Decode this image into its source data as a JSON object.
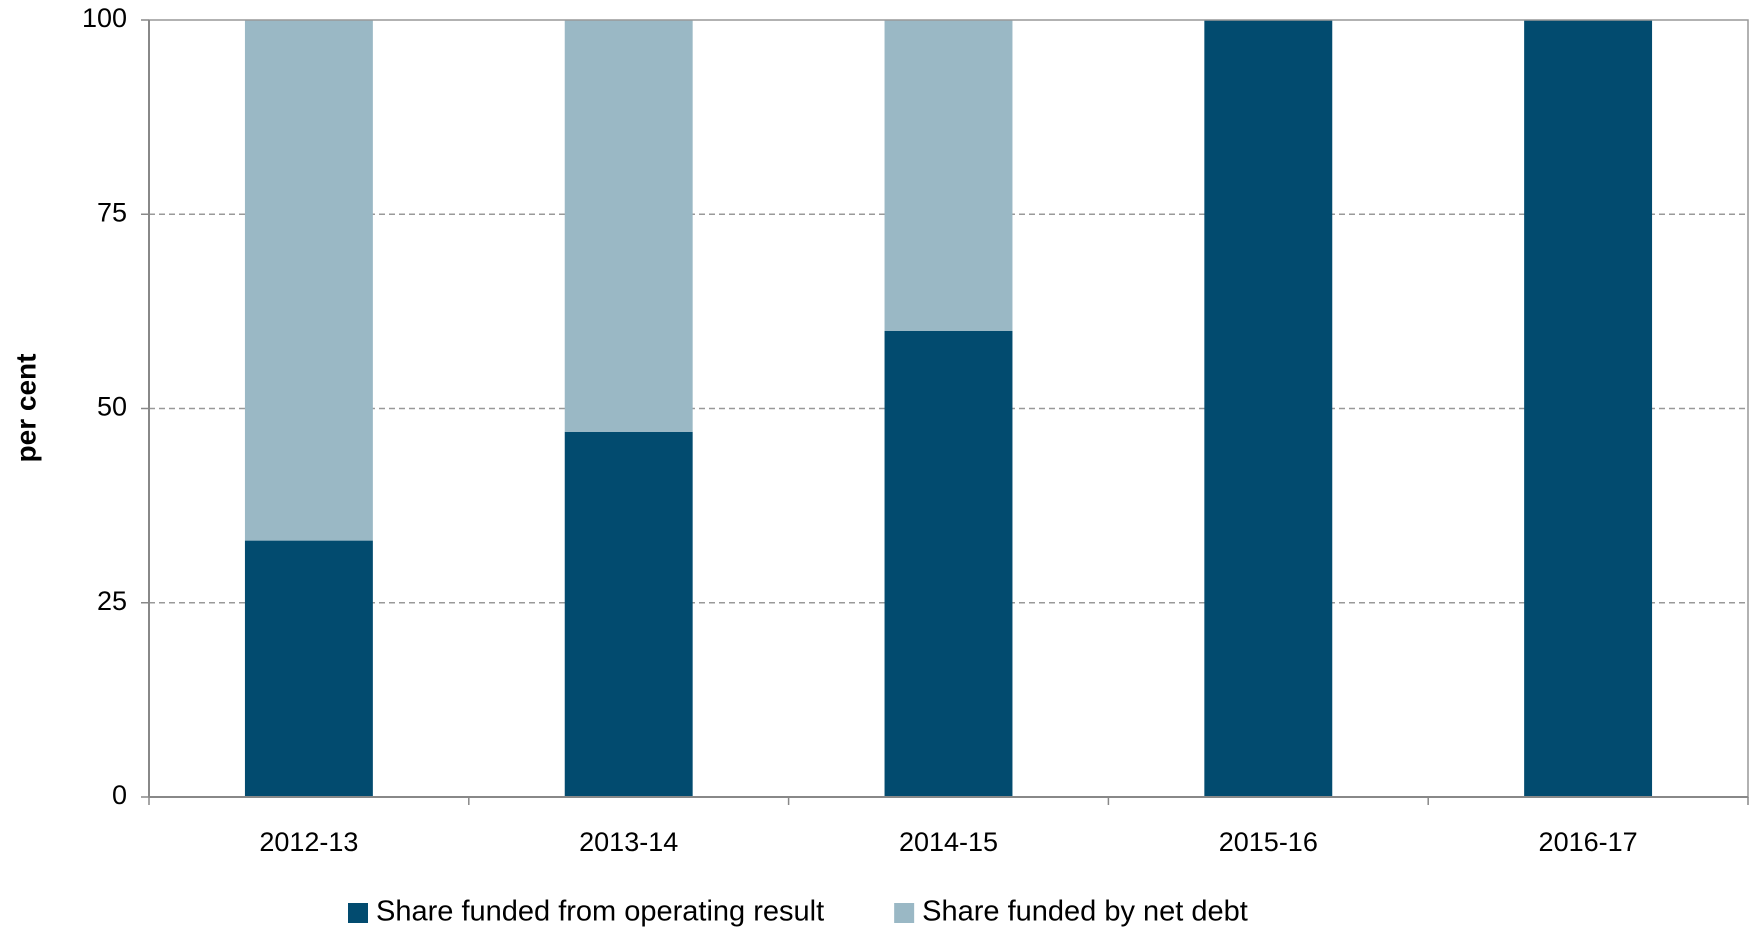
{
  "chart_data": {
    "type": "stacked_bar",
    "y_label": "per cent",
    "categories": [
      "2012-13",
      "2013-14",
      "2014-15",
      "2015-16",
      "2016-17"
    ],
    "series": [
      {
        "name": "Share funded from operating result",
        "color": "#024b6f",
        "values": [
          33,
          47,
          60,
          100,
          100
        ]
      },
      {
        "name": "Share funded by net debt",
        "color": "#9ab8c5",
        "values": [
          67,
          53,
          40,
          0,
          0
        ]
      }
    ],
    "ylim": [
      0,
      100
    ],
    "yticks": [
      0,
      25,
      50,
      75,
      100
    ],
    "grid": true,
    "legend": "bottom"
  }
}
